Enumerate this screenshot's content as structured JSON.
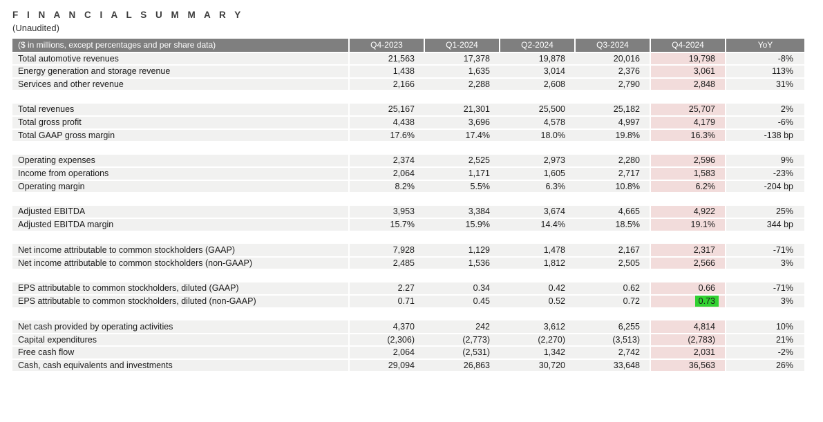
{
  "title": "F I N A N C I A L   S U M M A R Y",
  "subtitle": "(Unaudited)",
  "colors": {
    "header_bg": "#7f7f7f",
    "row_bg": "#f1f1f0",
    "pink_col_bg": "#f2dcdb",
    "green_highlight": "#32d232",
    "text_color": "#1a1a1a",
    "title_color": "#3d3d3d"
  },
  "table": {
    "header": [
      "($ in millions, except percentages and per share data)",
      "Q4-2023",
      "Q1-2024",
      "Q2-2024",
      "Q3-2024",
      "Q4-2024",
      "YoY"
    ],
    "highlight_column_label": "Q4-2024",
    "highlight_column_index": 4,
    "sections": [
      {
        "rows": [
          {
            "label": "Total automotive revenues",
            "values": [
              "21,563",
              "17,378",
              "19,878",
              "20,016",
              "19,798",
              "-8%"
            ]
          },
          {
            "label": "Energy generation and storage revenue",
            "values": [
              "1,438",
              "1,635",
              "3,014",
              "2,376",
              "3,061",
              "113%"
            ]
          },
          {
            "label": "Services and other revenue",
            "values": [
              "2,166",
              "2,288",
              "2,608",
              "2,790",
              "2,848",
              "31%"
            ]
          }
        ]
      },
      {
        "rows": [
          {
            "label": "Total revenues",
            "values": [
              "25,167",
              "21,301",
              "25,500",
              "25,182",
              "25,707",
              "2%"
            ]
          },
          {
            "label": "Total gross profit",
            "values": [
              "4,438",
              "3,696",
              "4,578",
              "4,997",
              "4,179",
              "-6%"
            ]
          },
          {
            "label": "Total GAAP gross margin",
            "values": [
              "17.6%",
              "17.4%",
              "18.0%",
              "19.8%",
              "16.3%",
              "-138 bp"
            ]
          }
        ]
      },
      {
        "rows": [
          {
            "label": "Operating expenses",
            "values": [
              "2,374",
              "2,525",
              "2,973",
              "2,280",
              "2,596",
              "9%"
            ]
          },
          {
            "label": "Income from operations",
            "values": [
              "2,064",
              "1,171",
              "1,605",
              "2,717",
              "1,583",
              "-23%"
            ]
          },
          {
            "label": "Operating margin",
            "values": [
              "8.2%",
              "5.5%",
              "6.3%",
              "10.8%",
              "6.2%",
              "-204 bp"
            ]
          }
        ]
      },
      {
        "rows": [
          {
            "label": "Adjusted EBITDA",
            "values": [
              "3,953",
              "3,384",
              "3,674",
              "4,665",
              "4,922",
              "25%"
            ]
          },
          {
            "label": "Adjusted EBITDA margin",
            "values": [
              "15.7%",
              "15.9%",
              "14.4%",
              "18.5%",
              "19.1%",
              "344 bp"
            ]
          }
        ]
      },
      {
        "rows": [
          {
            "label": "Net income attributable to common stockholders (GAAP)",
            "values": [
              "7,928",
              "1,129",
              "1,478",
              "2,167",
              "2,317",
              "-71%"
            ]
          },
          {
            "label": "Net income attributable to common stockholders (non-GAAP)",
            "values": [
              "2,485",
              "1,536",
              "1,812",
              "2,505",
              "2,566",
              "3%"
            ]
          }
        ]
      },
      {
        "rows": [
          {
            "label": "EPS attributable to common stockholders, diluted (GAAP)",
            "values": [
              "2.27",
              "0.34",
              "0.42",
              "0.62",
              "0.66",
              "-71%"
            ]
          },
          {
            "label": "EPS attributable to common stockholders, diluted (non-GAAP)",
            "values": [
              "0.71",
              "0.45",
              "0.52",
              "0.72",
              "0.73",
              "3%"
            ],
            "green_highlight_col": 4
          }
        ]
      },
      {
        "rows": [
          {
            "label": "Net cash provided by operating activities",
            "values": [
              "4,370",
              "242",
              "3,612",
              "6,255",
              "4,814",
              "10%"
            ]
          },
          {
            "label": "Capital expenditures",
            "values": [
              "(2,306)",
              "(2,773)",
              "(2,270)",
              "(3,513)",
              "(2,783)",
              "21%"
            ]
          },
          {
            "label": "Free cash flow",
            "values": [
              "2,064",
              "(2,531)",
              "1,342",
              "2,742",
              "2,031",
              "-2%"
            ]
          },
          {
            "label": "Cash, cash equivalents and investments",
            "values": [
              "29,094",
              "26,863",
              "30,720",
              "33,648",
              "36,563",
              "26%"
            ]
          }
        ]
      }
    ]
  }
}
